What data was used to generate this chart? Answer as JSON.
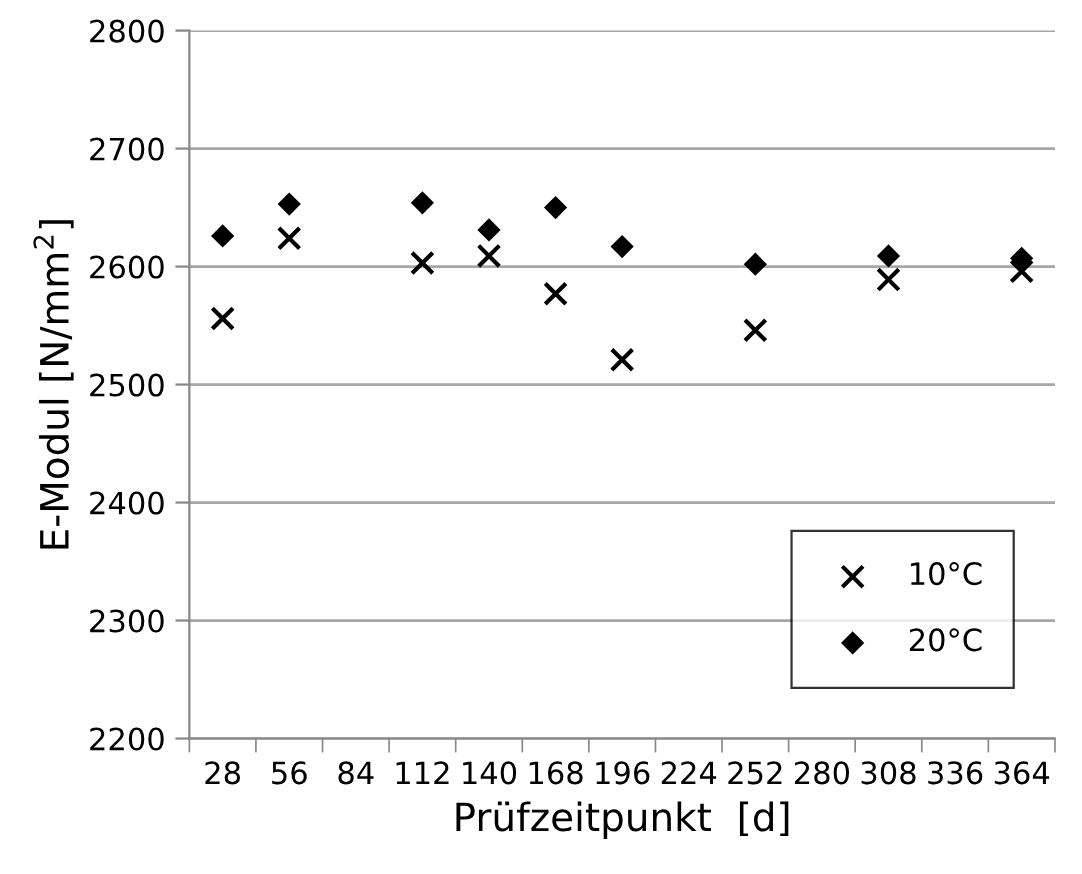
{
  "chart_data": {
    "type": "scatter",
    "xlabel": "Prüfzeitpunkt  [d]",
    "ylabel": "E-Modul [N/mm$^{2}$]",
    "categories": [
      "28",
      "56",
      "84",
      "112",
      "140",
      "168",
      "196",
      "224",
      "252",
      "280",
      "308",
      "336",
      "364"
    ],
    "series": [
      {
        "name": "10°C",
        "color": "#000000",
        "marker": "cross",
        "values": [
          2556,
          2624,
          null,
          2603,
          2609,
          2577,
          2521,
          null,
          2546,
          null,
          2589,
          null,
          2596
        ]
      },
      {
        "name": "20°C",
        "color": "#000000",
        "marker": "diamond",
        "values": [
          2626,
          2653,
          null,
          2654,
          2631,
          2650,
          2617,
          null,
          2602,
          null,
          2609,
          null,
          2607
        ]
      }
    ],
    "ylim": [
      2200,
      2800
    ],
    "yticks": [
      2200,
      2300,
      2400,
      2500,
      2600,
      2700,
      2800
    ],
    "grid": "y",
    "legend": "bottom right"
  }
}
